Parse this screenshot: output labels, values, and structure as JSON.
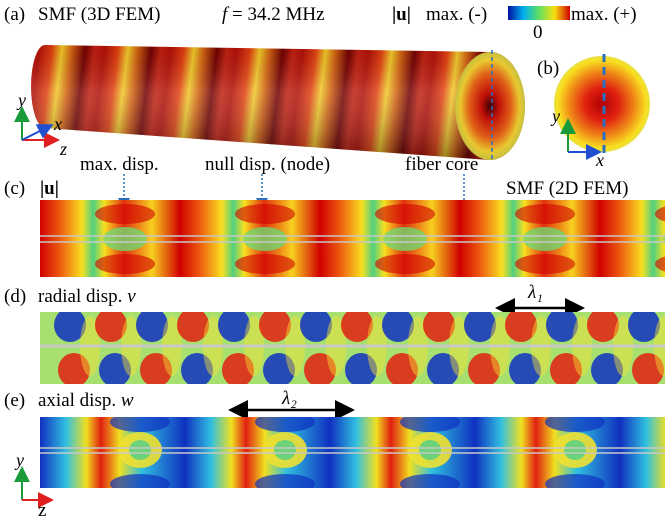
{
  "panel_a": {
    "label": "(a)",
    "title": "SMF (3D FEM)",
    "frequency_symbol": "f",
    "frequency": "= 34.2 MHz",
    "axes": [
      "y",
      "x",
      "z"
    ]
  },
  "colorbar": {
    "quantity": "|u|",
    "min_label": "max. (-)",
    "max_label": "max. (+)",
    "zero_label": "0"
  },
  "panel_b": {
    "label": "(b)",
    "axes": [
      "y",
      "x"
    ]
  },
  "annotations": [
    "max. disp.",
    "null disp. (node)",
    "fiber core"
  ],
  "panel_c": {
    "label": "(c)",
    "quantity": "|u|",
    "title": "SMF (2D FEM)"
  },
  "panel_d": {
    "label": "(d)",
    "title": "radial disp.",
    "symbol": "v",
    "wavelength": "λ₁"
  },
  "panel_e": {
    "label": "(e)",
    "title": "axial disp.",
    "symbol": "w",
    "wavelength": "λ₂"
  },
  "bottom_axes": [
    "y",
    "z"
  ]
}
